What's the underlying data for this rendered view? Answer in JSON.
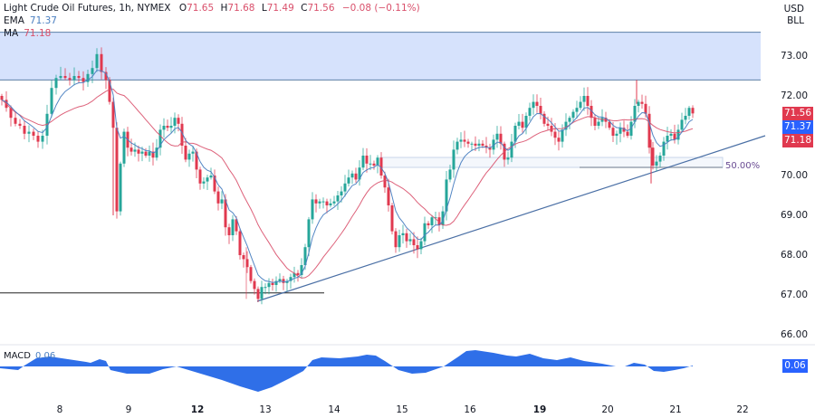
{
  "header": {
    "symbol": "Light Crude Oil Futures, 1h, NYMEX",
    "open_label": "O",
    "open": "71.65",
    "high_label": "H",
    "high": "71.68",
    "low_label": "L",
    "low": "71.49",
    "close_label": "C",
    "close": "71.56",
    "change": "−0.08 (−0.11%)",
    "ema_label": "EMA",
    "ema_value": "71.37",
    "ma_label": "MA",
    "ma_value": "71.18"
  },
  "axis": {
    "currency": "USD",
    "unit": "BLL",
    "y_ticks": [
      "73.00",
      "72.00",
      "70.00",
      "69.00",
      "68.00",
      "67.00",
      "66.00"
    ],
    "x_ticks": [
      {
        "label": "8",
        "bold": false
      },
      {
        "label": "9",
        "bold": false
      },
      {
        "label": "12",
        "bold": true
      },
      {
        "label": "13",
        "bold": false
      },
      {
        "label": "14",
        "bold": false
      },
      {
        "label": "15",
        "bold": false
      },
      {
        "label": "16",
        "bold": false
      },
      {
        "label": "19",
        "bold": true
      },
      {
        "label": "20",
        "bold": false
      },
      {
        "label": "21",
        "bold": false
      },
      {
        "label": "22",
        "bold": false
      }
    ]
  },
  "price_tags": {
    "last": "71.56",
    "ema": "71.37",
    "ma": "71.18"
  },
  "annotations": {
    "fib_label": "50.00%",
    "resistance_zone": [
      72.4,
      73.6
    ],
    "support_line": 67.05
  },
  "macd": {
    "label": "MACD",
    "value": "0.06",
    "tag": "0.06"
  },
  "colors": {
    "up": "#26a69a",
    "down": "#e0394f",
    "ema": "#4a7fc1",
    "ma": "#d9506b",
    "zone_fill": "#d6e2fc",
    "zone_border": "#5b7fa6",
    "trendline": "#4a6fa5",
    "macd_fill": "#2f6fe8",
    "last_tag": "#e0394f",
    "ema_tag": "#2962ff",
    "ma_tag": "#e0394f"
  },
  "chart_data": {
    "type": "candlestick",
    "title": "Light Crude Oil Futures, 1h, NYMEX",
    "xlabel": "",
    "ylabel": "USD / BLL",
    "ylim": [
      65.7,
      73.9
    ],
    "x_ticks": [
      "8",
      "9",
      "12",
      "13",
      "14",
      "15",
      "16",
      "19",
      "20",
      "21",
      "22"
    ],
    "indicators": [
      "EMA 71.37",
      "MA 71.18",
      "MACD 0.06"
    ],
    "ohlc_last": {
      "open": 71.65,
      "high": 71.68,
      "low": 71.49,
      "close": 71.56,
      "change": -0.08,
      "change_pct": -0.11
    },
    "key_path": [
      {
        "x": "7 (start)",
        "price": 71.9
      },
      {
        "x": "7 late",
        "price": 71.4
      },
      {
        "x": "8",
        "price": 72.6
      },
      {
        "x": "8 late",
        "price": 72.4
      },
      {
        "x": "9 early",
        "price": 73.2
      },
      {
        "x": "9",
        "price": 69.3
      },
      {
        "x": "9 mid",
        "price": 71.0
      },
      {
        "x": "9 late",
        "price": 71.6
      },
      {
        "x": "12",
        "price": 70.3
      },
      {
        "x": "12 late",
        "price": 68.0
      },
      {
        "x": "13",
        "price": 66.9
      },
      {
        "x": "13 mid",
        "price": 67.4
      },
      {
        "x": "14",
        "price": 69.8
      },
      {
        "x": "14 late",
        "price": 70.4
      },
      {
        "x": "15",
        "price": 68.3
      },
      {
        "x": "16",
        "price": 70.9
      },
      {
        "x": "16 late",
        "price": 70.8
      },
      {
        "x": "19",
        "price": 72.0
      },
      {
        "x": "19 late",
        "price": 71.0
      },
      {
        "x": "20",
        "price": 72.1
      },
      {
        "x": "20 mid",
        "price": 71.2
      },
      {
        "x": "20 late",
        "price": 72.0
      },
      {
        "x": "21",
        "price": 70.2
      },
      {
        "x": "21 late",
        "price": 71.56
      }
    ],
    "annotations": [
      "Resistance zone 72.4–73.6",
      "Horizontal support 67.05",
      "Ascending trendline from 66.9",
      "Fibonacci 50.00% ~70.3"
    ]
  }
}
